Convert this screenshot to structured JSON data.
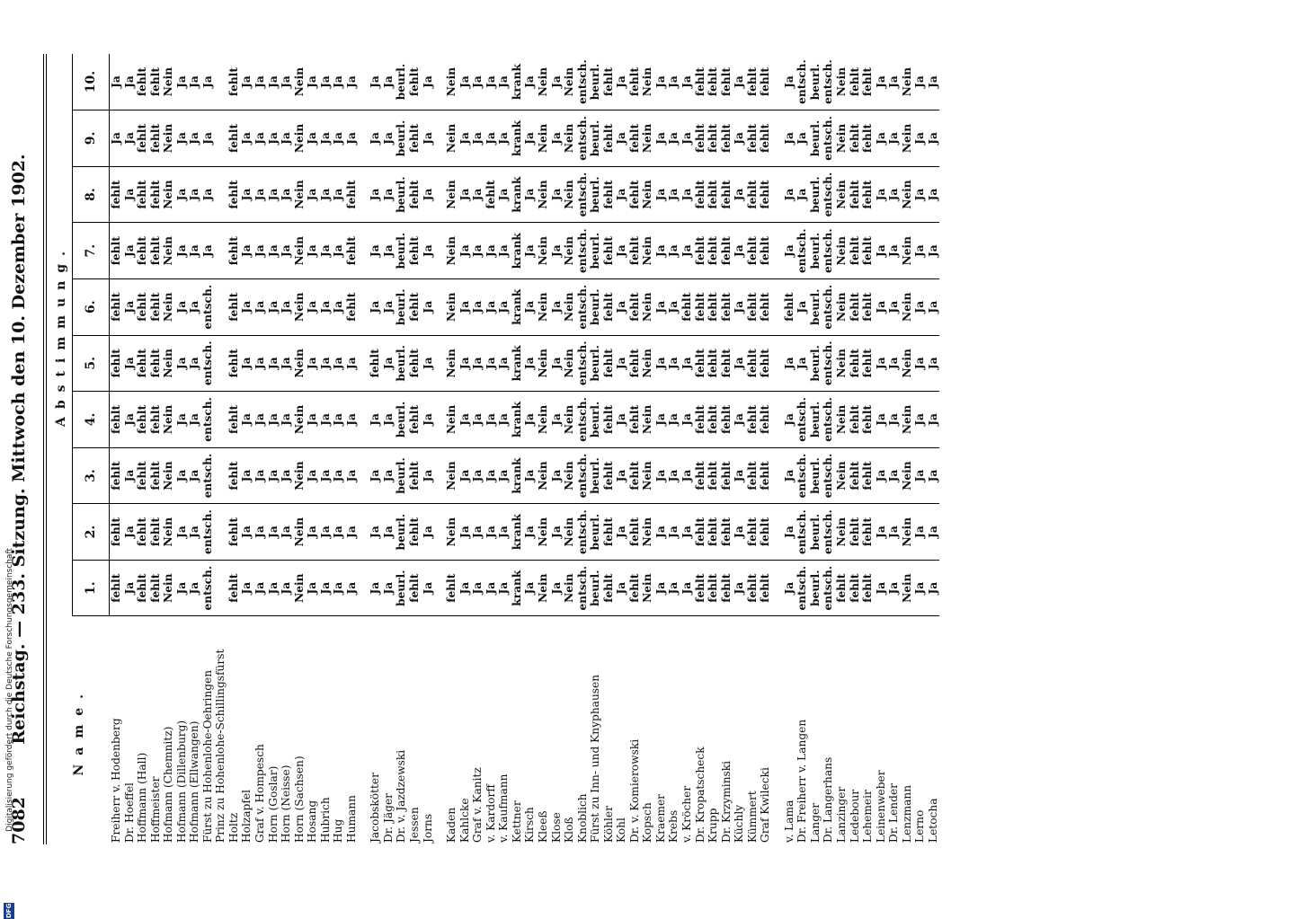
{
  "page_number": "7082",
  "running_title": "Reichstag. — 233. Sitzung. Mittwoch den 10. Dezember 1902.",
  "column_name_header": "Name.",
  "column_group_header": "Abstimmung.",
  "vote_numbers": [
    "1.",
    "2.",
    "3.",
    "4.",
    "5.",
    "6.",
    "7.",
    "8.",
    "9.",
    "10."
  ],
  "groups": [
    [
      [
        "Freiherr v. Hodenberg",
        "fehlt",
        "fehlt",
        "fehlt",
        "fehlt",
        "fehlt",
        "fehlt",
        "fehlt",
        "fehlt",
        "Ja",
        "Ja"
      ],
      [
        "Dr. Hoeffel",
        "Ja",
        "Ja",
        "Ja",
        "Ja",
        "Ja",
        "Ja",
        "Ja",
        "Ja",
        "Ja",
        "Ja"
      ],
      [
        "Hoffmann (Hall)",
        "fehlt",
        "fehlt",
        "fehlt",
        "fehlt",
        "fehlt",
        "fehlt",
        "fehlt",
        "fehlt",
        "fehlt",
        "fehlt"
      ],
      [
        "Hoffmeister",
        "fehlt",
        "fehlt",
        "fehlt",
        "fehlt",
        "fehlt",
        "fehlt",
        "fehlt",
        "fehlt",
        "fehlt",
        "fehlt"
      ],
      [
        "Hofmann (Chemnitz)",
        "Nein",
        "Nein",
        "Nein",
        "Nein",
        "Nein",
        "Nein",
        "Nein",
        "Nein",
        "Nein",
        "Nein"
      ],
      [
        "Hofmann (Dillenburg)",
        "Ja",
        "Ja",
        "Ja",
        "Ja",
        "Ja",
        "Ja",
        "Ja",
        "Ja",
        "Ja",
        "Ja"
      ],
      [
        "Hofmann (Ellwangen)",
        "Ja",
        "Ja",
        "Ja",
        "Ja",
        "Ja",
        "Ja",
        "Ja",
        "Ja",
        "Ja",
        "Ja"
      ],
      [
        "Fürst zu Hohenlohe-Oehringen",
        "entsch.",
        "entsch.",
        "entsch.",
        "entsch.",
        "entsch.",
        "entsch.",
        "Ja",
        "Ja",
        "Ja",
        "Ja"
      ],
      [
        "Prinz zu Hohenlohe-Schillingsfürst",
        "",
        "",
        "",
        "",
        "",
        "",
        "",
        "",
        "",
        ""
      ],
      [
        "Holtz",
        "fehlt",
        "fehlt",
        "fehlt",
        "fehlt",
        "fehlt",
        "fehlt",
        "fehlt",
        "fehlt",
        "fehlt",
        "fehlt"
      ],
      [
        "Holzapfel",
        "Ja",
        "Ja",
        "Ja",
        "Ja",
        "Ja",
        "Ja",
        "Ja",
        "Ja",
        "Ja",
        "Ja"
      ],
      [
        "Graf v. Hompesch",
        "Ja",
        "Ja",
        "Ja",
        "Ja",
        "Ja",
        "Ja",
        "Ja",
        "Ja",
        "Ja",
        "Ja"
      ],
      [
        "Horn (Goslar)",
        "Ja",
        "Ja",
        "Ja",
        "Ja",
        "Ja",
        "Ja",
        "Ja",
        "Ja",
        "Ja",
        "Ja"
      ],
      [
        "Horn (Neisse)",
        "Ja",
        "Ja",
        "Ja",
        "Ja",
        "Ja",
        "Ja",
        "Ja",
        "Ja",
        "Ja",
        "Ja"
      ],
      [
        "Horn (Sachsen)",
        "Nein",
        "Nein",
        "Nein",
        "Nein",
        "Nein",
        "Nein",
        "Nein",
        "Nein",
        "Nein",
        "Nein"
      ],
      [
        "Hosang",
        "Ja",
        "Ja",
        "Ja",
        "Ja",
        "Ja",
        "Ja",
        "Ja",
        "Ja",
        "Ja",
        "Ja"
      ],
      [
        "Hubrich",
        "Ja",
        "Ja",
        "Ja",
        "Ja",
        "Ja",
        "Ja",
        "Ja",
        "Ja",
        "Ja",
        "Ja"
      ],
      [
        "Hug",
        "Ja",
        "Ja",
        "Ja",
        "Ja",
        "Ja",
        "Ja",
        "Ja",
        "Ja",
        "Ja",
        "Ja"
      ],
      [
        "Humann",
        "Ja",
        "Ja",
        "Ja",
        "Ja",
        "Ja",
        "fehlt",
        "fehlt",
        "fehlt",
        "Ja",
        "Ja"
      ]
    ],
    [
      [
        "Jacobskötter",
        "Ja",
        "Ja",
        "Ja",
        "Ja",
        "fehlt",
        "Ja",
        "Ja",
        "Ja",
        "Ja",
        "Ja"
      ],
      [
        "Dr. Jäger",
        "Ja",
        "Ja",
        "Ja",
        "Ja",
        "Ja",
        "Ja",
        "Ja",
        "Ja",
        "Ja",
        "Ja"
      ],
      [
        "Dr. v. Jazdzewski",
        "beurl.",
        "beurl.",
        "beurl.",
        "beurl.",
        "beurl.",
        "beurl.",
        "beurl.",
        "beurl.",
        "beurl.",
        "beurl."
      ],
      [
        "Jessen",
        "fehlt",
        "fehlt",
        "fehlt",
        "fehlt",
        "fehlt",
        "fehlt",
        "fehlt",
        "fehlt",
        "fehlt",
        "fehlt"
      ],
      [
        "Jorns",
        "Ja",
        "Ja",
        "Ja",
        "Ja",
        "Ja",
        "Ja",
        "Ja",
        "Ja",
        "Ja",
        "Ja"
      ]
    ],
    [
      [
        "Kaden",
        "fehlt",
        "Nein",
        "Nein",
        "Nein",
        "Nein",
        "Nein",
        "Nein",
        "Nein",
        "Nein",
        "Nein"
      ],
      [
        "Kahlcke",
        "Ja",
        "Ja",
        "Ja",
        "Ja",
        "Ja",
        "Ja",
        "Ja",
        "Ja",
        "Ja",
        "Ja"
      ],
      [
        "Graf v. Kanitz",
        "Ja",
        "Ja",
        "Ja",
        "Ja",
        "Ja",
        "Ja",
        "Ja",
        "Ja",
        "Ja",
        "Ja"
      ],
      [
        "v. Kardorff",
        "Ja",
        "Ja",
        "Ja",
        "Ja",
        "Ja",
        "Ja",
        "Ja",
        "fehlt",
        "Ja",
        "Ja"
      ],
      [
        "v. Kaufmann",
        "Ja",
        "Ja",
        "Ja",
        "Ja",
        "Ja",
        "Ja",
        "Ja",
        "Ja",
        "Ja",
        "Ja"
      ],
      [
        "Kettner",
        "krank",
        "krank",
        "krank",
        "krank",
        "krank",
        "krank",
        "krank",
        "krank",
        "krank",
        "krank"
      ],
      [
        "Kirsch",
        "Ja",
        "Ja",
        "Ja",
        "Ja",
        "Ja",
        "Ja",
        "Ja",
        "Ja",
        "Ja",
        "Ja"
      ],
      [
        "Kleeß",
        "Nein",
        "Nein",
        "Nein",
        "Nein",
        "Nein",
        "Nein",
        "Nein",
        "Nein",
        "Nein",
        "Nein"
      ],
      [
        "Klose",
        "Ja",
        "Ja",
        "Ja",
        "Ja",
        "Ja",
        "Ja",
        "Ja",
        "Ja",
        "Ja",
        "Ja"
      ],
      [
        "Kloß",
        "Nein",
        "Nein",
        "Nein",
        "Nein",
        "Nein",
        "Nein",
        "Nein",
        "Nein",
        "Nein",
        "Nein"
      ],
      [
        "Knoblich",
        "entsch.",
        "entsch.",
        "entsch.",
        "entsch.",
        "entsch.",
        "entsch.",
        "entsch.",
        "entsch.",
        "entsch.",
        "entsch."
      ],
      [
        "Fürst zu Inn- und Knyphausen",
        "beurl.",
        "beurl.",
        "beurl.",
        "beurl.",
        "beurl.",
        "beurl.",
        "beurl.",
        "beurl.",
        "beurl.",
        "beurl."
      ],
      [
        "Köhler",
        "fehlt",
        "fehlt",
        "fehlt",
        "fehlt",
        "fehlt",
        "fehlt",
        "fehlt",
        "fehlt",
        "fehlt",
        "fehlt"
      ],
      [
        "Kohl",
        "Ja",
        "Ja",
        "Ja",
        "Ja",
        "Ja",
        "Ja",
        "Ja",
        "Ja",
        "Ja",
        "Ja"
      ],
      [
        "Dr. v. Komierowski",
        "fehlt",
        "fehlt",
        "fehlt",
        "fehlt",
        "fehlt",
        "fehlt",
        "fehlt",
        "fehlt",
        "fehlt",
        "fehlt"
      ],
      [
        "Kopsch",
        "Nein",
        "Nein",
        "Nein",
        "Nein",
        "Nein",
        "Nein",
        "Nein",
        "Nein",
        "Nein",
        "Nein"
      ],
      [
        "Kraemer",
        "Ja",
        "Ja",
        "Ja",
        "Ja",
        "Ja",
        "Ja",
        "Ja",
        "Ja",
        "Ja",
        "Ja"
      ],
      [
        "Krebs",
        "Ja",
        "Ja",
        "Ja",
        "Ja",
        "Ja",
        "Ja",
        "Ja",
        "Ja",
        "Ja",
        "Ja"
      ],
      [
        "v. Kröcher",
        "Ja",
        "Ja",
        "Ja",
        "Ja",
        "Ja",
        "fehlt",
        "Ja",
        "Ja",
        "Ja",
        "Ja"
      ],
      [
        "Dr. Kropatscheck",
        "fehlt",
        "fehlt",
        "fehlt",
        "fehlt",
        "fehlt",
        "fehlt",
        "fehlt",
        "fehlt",
        "fehlt",
        "fehlt"
      ],
      [
        "Krupp",
        "fehlt",
        "fehlt",
        "fehlt",
        "fehlt",
        "fehlt",
        "fehlt",
        "fehlt",
        "fehlt",
        "fehlt",
        "fehlt"
      ],
      [
        "Dr. Krzyminski",
        "fehlt",
        "fehlt",
        "fehlt",
        "fehlt",
        "fehlt",
        "fehlt",
        "fehlt",
        "fehlt",
        "fehlt",
        "fehlt"
      ],
      [
        "Küchly",
        "Ja",
        "Ja",
        "Ja",
        "Ja",
        "Ja",
        "Ja",
        "Ja",
        "Ja",
        "Ja",
        "Ja"
      ],
      [
        "Kümmert",
        "fehlt",
        "fehlt",
        "fehlt",
        "fehlt",
        "fehlt",
        "fehlt",
        "fehlt",
        "fehlt",
        "fehlt",
        "fehlt"
      ],
      [
        "Graf Kwilecki",
        "fehlt",
        "fehlt",
        "fehlt",
        "fehlt",
        "fehlt",
        "fehlt",
        "fehlt",
        "fehlt",
        "fehlt",
        "fehlt"
      ]
    ],
    [
      [
        "v. Lama",
        "Ja",
        "Ja",
        "Ja",
        "Ja",
        "Ja",
        "fehlt",
        "Ja",
        "Ja",
        "Ja",
        "Ja"
      ],
      [
        "Dr. Freiherr v. Langen",
        "entsch.",
        "entsch.",
        "entsch.",
        "entsch.",
        "Ja",
        "Ja",
        "entsch.",
        "Ja",
        "Ja",
        "entsch."
      ],
      [
        "Langer",
        "beurl.",
        "beurl.",
        "beurl.",
        "beurl.",
        "beurl.",
        "beurl.",
        "beurl.",
        "beurl.",
        "beurl.",
        "beurl."
      ],
      [
        "Dr. Langerhans",
        "entsch.",
        "entsch.",
        "entsch.",
        "entsch.",
        "entsch.",
        "entsch.",
        "entsch.",
        "entsch.",
        "entsch.",
        "entsch."
      ],
      [
        "Lanzinger",
        "fehlt",
        "Nein",
        "Nein",
        "Nein",
        "Nein",
        "Nein",
        "Nein",
        "Nein",
        "Nein",
        "Nein"
      ],
      [
        "Ledebour",
        "fehlt",
        "fehlt",
        "fehlt",
        "fehlt",
        "fehlt",
        "fehlt",
        "fehlt",
        "fehlt",
        "fehlt",
        "fehlt"
      ],
      [
        "Lehemeir",
        "fehlt",
        "fehlt",
        "fehlt",
        "fehlt",
        "fehlt",
        "fehlt",
        "fehlt",
        "fehlt",
        "fehlt",
        "fehlt"
      ],
      [
        "Leinenweber",
        "Ja",
        "Ja",
        "Ja",
        "Ja",
        "Ja",
        "Ja",
        "Ja",
        "Ja",
        "Ja",
        "Ja"
      ],
      [
        "Dr. Lender",
        "Ja",
        "Ja",
        "Ja",
        "Ja",
        "Ja",
        "Ja",
        "Ja",
        "Ja",
        "Ja",
        "Ja"
      ],
      [
        "Lenzmann",
        "Nein",
        "Nein",
        "Nein",
        "Nein",
        "Nein",
        "Nein",
        "Nein",
        "Nein",
        "Nein",
        "Nein"
      ],
      [
        "Lerno",
        "Ja",
        "Ja",
        "Ja",
        "Ja",
        "Ja",
        "Ja",
        "Ja",
        "Ja",
        "Ja",
        "Ja"
      ],
      [
        "Letocha",
        "Ja",
        "Ja",
        "Ja",
        "Ja",
        "Ja",
        "Ja",
        "Ja",
        "Ja",
        "Ja",
        "Ja"
      ]
    ]
  ],
  "margin_note": "Digitalisierung gefördert durch die Deutsche Forschungsgemeinschaft",
  "logo_text": "DFG"
}
